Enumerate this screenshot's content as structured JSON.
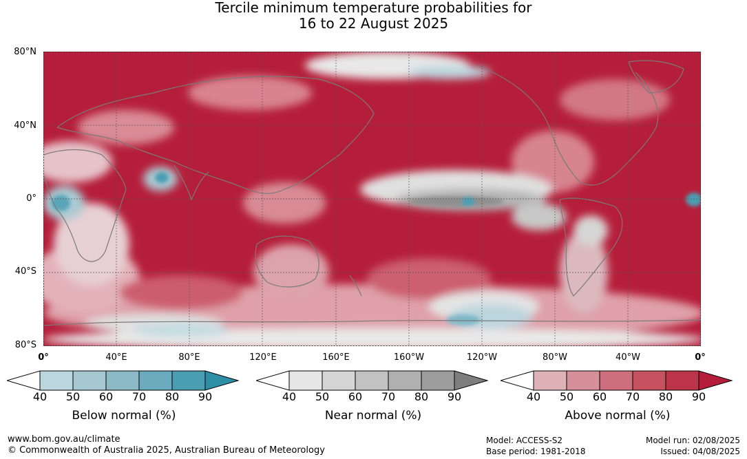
{
  "title": {
    "line1": "Tercile minimum temperature probabilities for",
    "line2": "16 to 22 August 2025"
  },
  "map": {
    "lat_labels": [
      "80°N",
      "40°N",
      "0°",
      "40°S",
      "80°S"
    ],
    "lon_labels": [
      "0°",
      "40°E",
      "80°E",
      "120°E",
      "160°E",
      "160°W",
      "120°W",
      "80°W",
      "40°W",
      "0°"
    ],
    "colors": {
      "above_strong": "#b51e3a",
      "above_mid": "#c9485d",
      "above_light": "#dfa0a9",
      "near_light": "#e2e2e2",
      "near_mid": "#b4b4b4",
      "below_light": "#bcd6de",
      "below_mid": "#6aaebe",
      "coast": "#7a7a7a"
    }
  },
  "legends": {
    "below": {
      "title": "Below normal (%)",
      "ticks": [
        "40",
        "50",
        "60",
        "70",
        "80",
        "90"
      ],
      "colors": [
        "#ffffff",
        "#bcd6de",
        "#a6c9d1",
        "#8bb9c6",
        "#6aacbe",
        "#4b9eb2",
        "#2d8ea6"
      ]
    },
    "near": {
      "title": "Near normal (%)",
      "ticks": [
        "40",
        "50",
        "60",
        "70",
        "80",
        "90"
      ],
      "colors": [
        "#ffffff",
        "#e6e6e6",
        "#d5d5d5",
        "#c2c2c2",
        "#b0b0b0",
        "#9d9d9d",
        "#7e7e7e"
      ]
    },
    "above": {
      "title": "Above normal (%)",
      "ticks": [
        "40",
        "50",
        "60",
        "70",
        "80",
        "90"
      ],
      "colors": [
        "#ffffff",
        "#dfb2b8",
        "#d78f99",
        "#cd6f7c",
        "#c6525f",
        "#bc3449",
        "#b51e3a"
      ]
    }
  },
  "footer": {
    "website": "www.bom.gov.au/climate",
    "copyright": "© Commonwealth of Australia 2025, Australian Bureau of Meteorology",
    "model": "Model: ACCESS-S2",
    "base_period": "Base period: 1981-2018",
    "model_run": "Model run: 02/08/2025",
    "issued": "Issued: 04/08/2025"
  }
}
